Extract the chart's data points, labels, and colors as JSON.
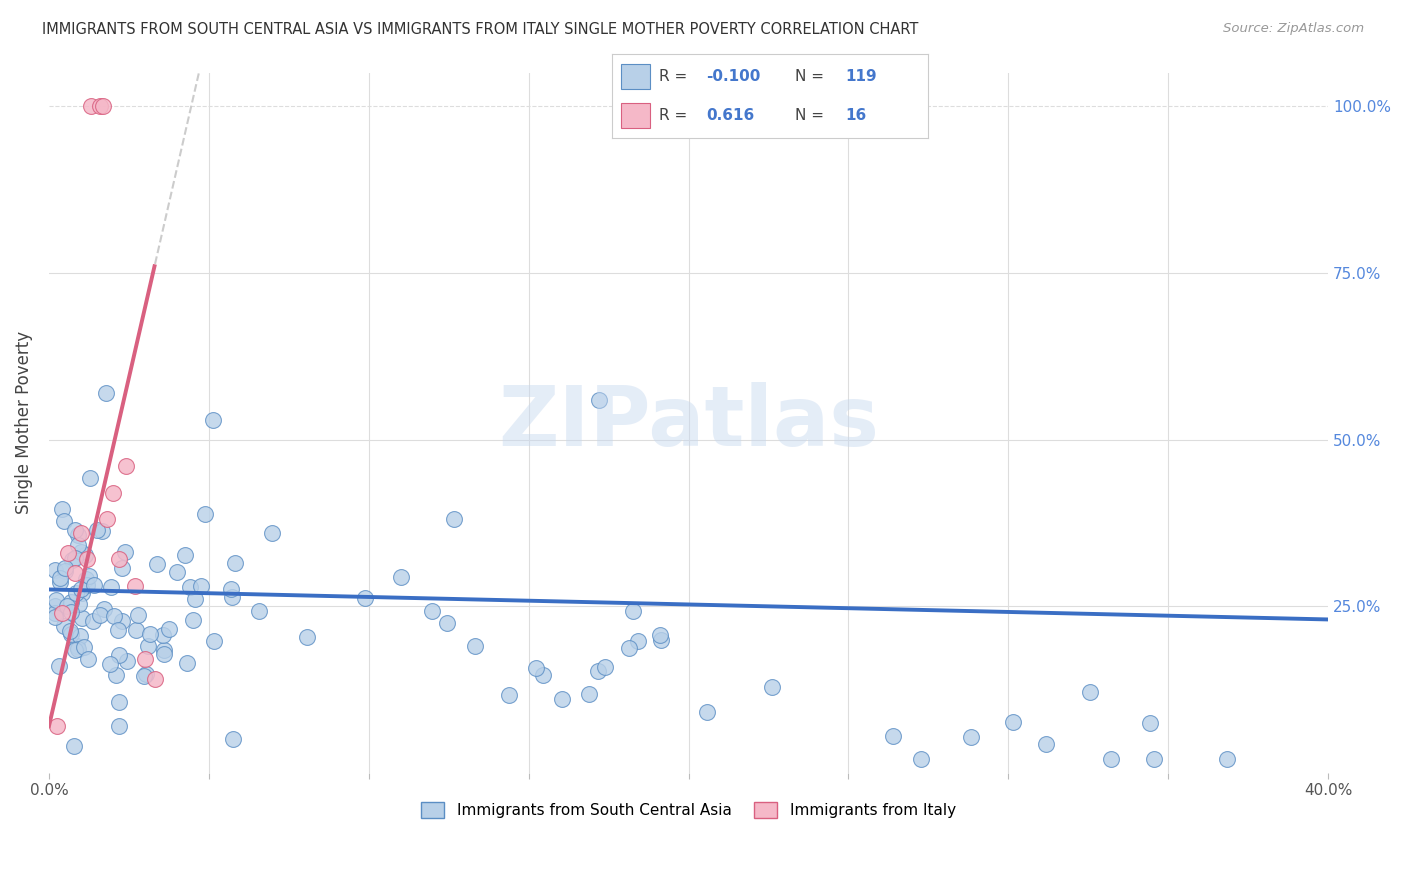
{
  "title": "IMMIGRANTS FROM SOUTH CENTRAL ASIA VS IMMIGRANTS FROM ITALY SINGLE MOTHER POVERTY CORRELATION CHART",
  "source": "Source: ZipAtlas.com",
  "ylabel": "Single Mother Poverty",
  "legend_label_blue": "Immigrants from South Central Asia",
  "legend_label_pink": "Immigrants from Italy",
  "R_blue": -0.1,
  "N_blue": 119,
  "R_pink": 0.616,
  "N_pink": 16,
  "blue_fill": "#b8d0e8",
  "blue_edge": "#5b8ec4",
  "pink_fill": "#f5b8c8",
  "pink_edge": "#d96080",
  "blue_line_color": "#3a6ec4",
  "pink_line_color": "#d96080",
  "gray_dash_color": "#cccccc",
  "xlim": [
    0.0,
    0.4
  ],
  "ylim": [
    0.0,
    1.05
  ],
  "watermark": "ZIPatlas",
  "background_color": "#ffffff",
  "grid_color": "#dddddd",
  "legend_text_color": "#4477cc",
  "legend_label_color": "#444444"
}
